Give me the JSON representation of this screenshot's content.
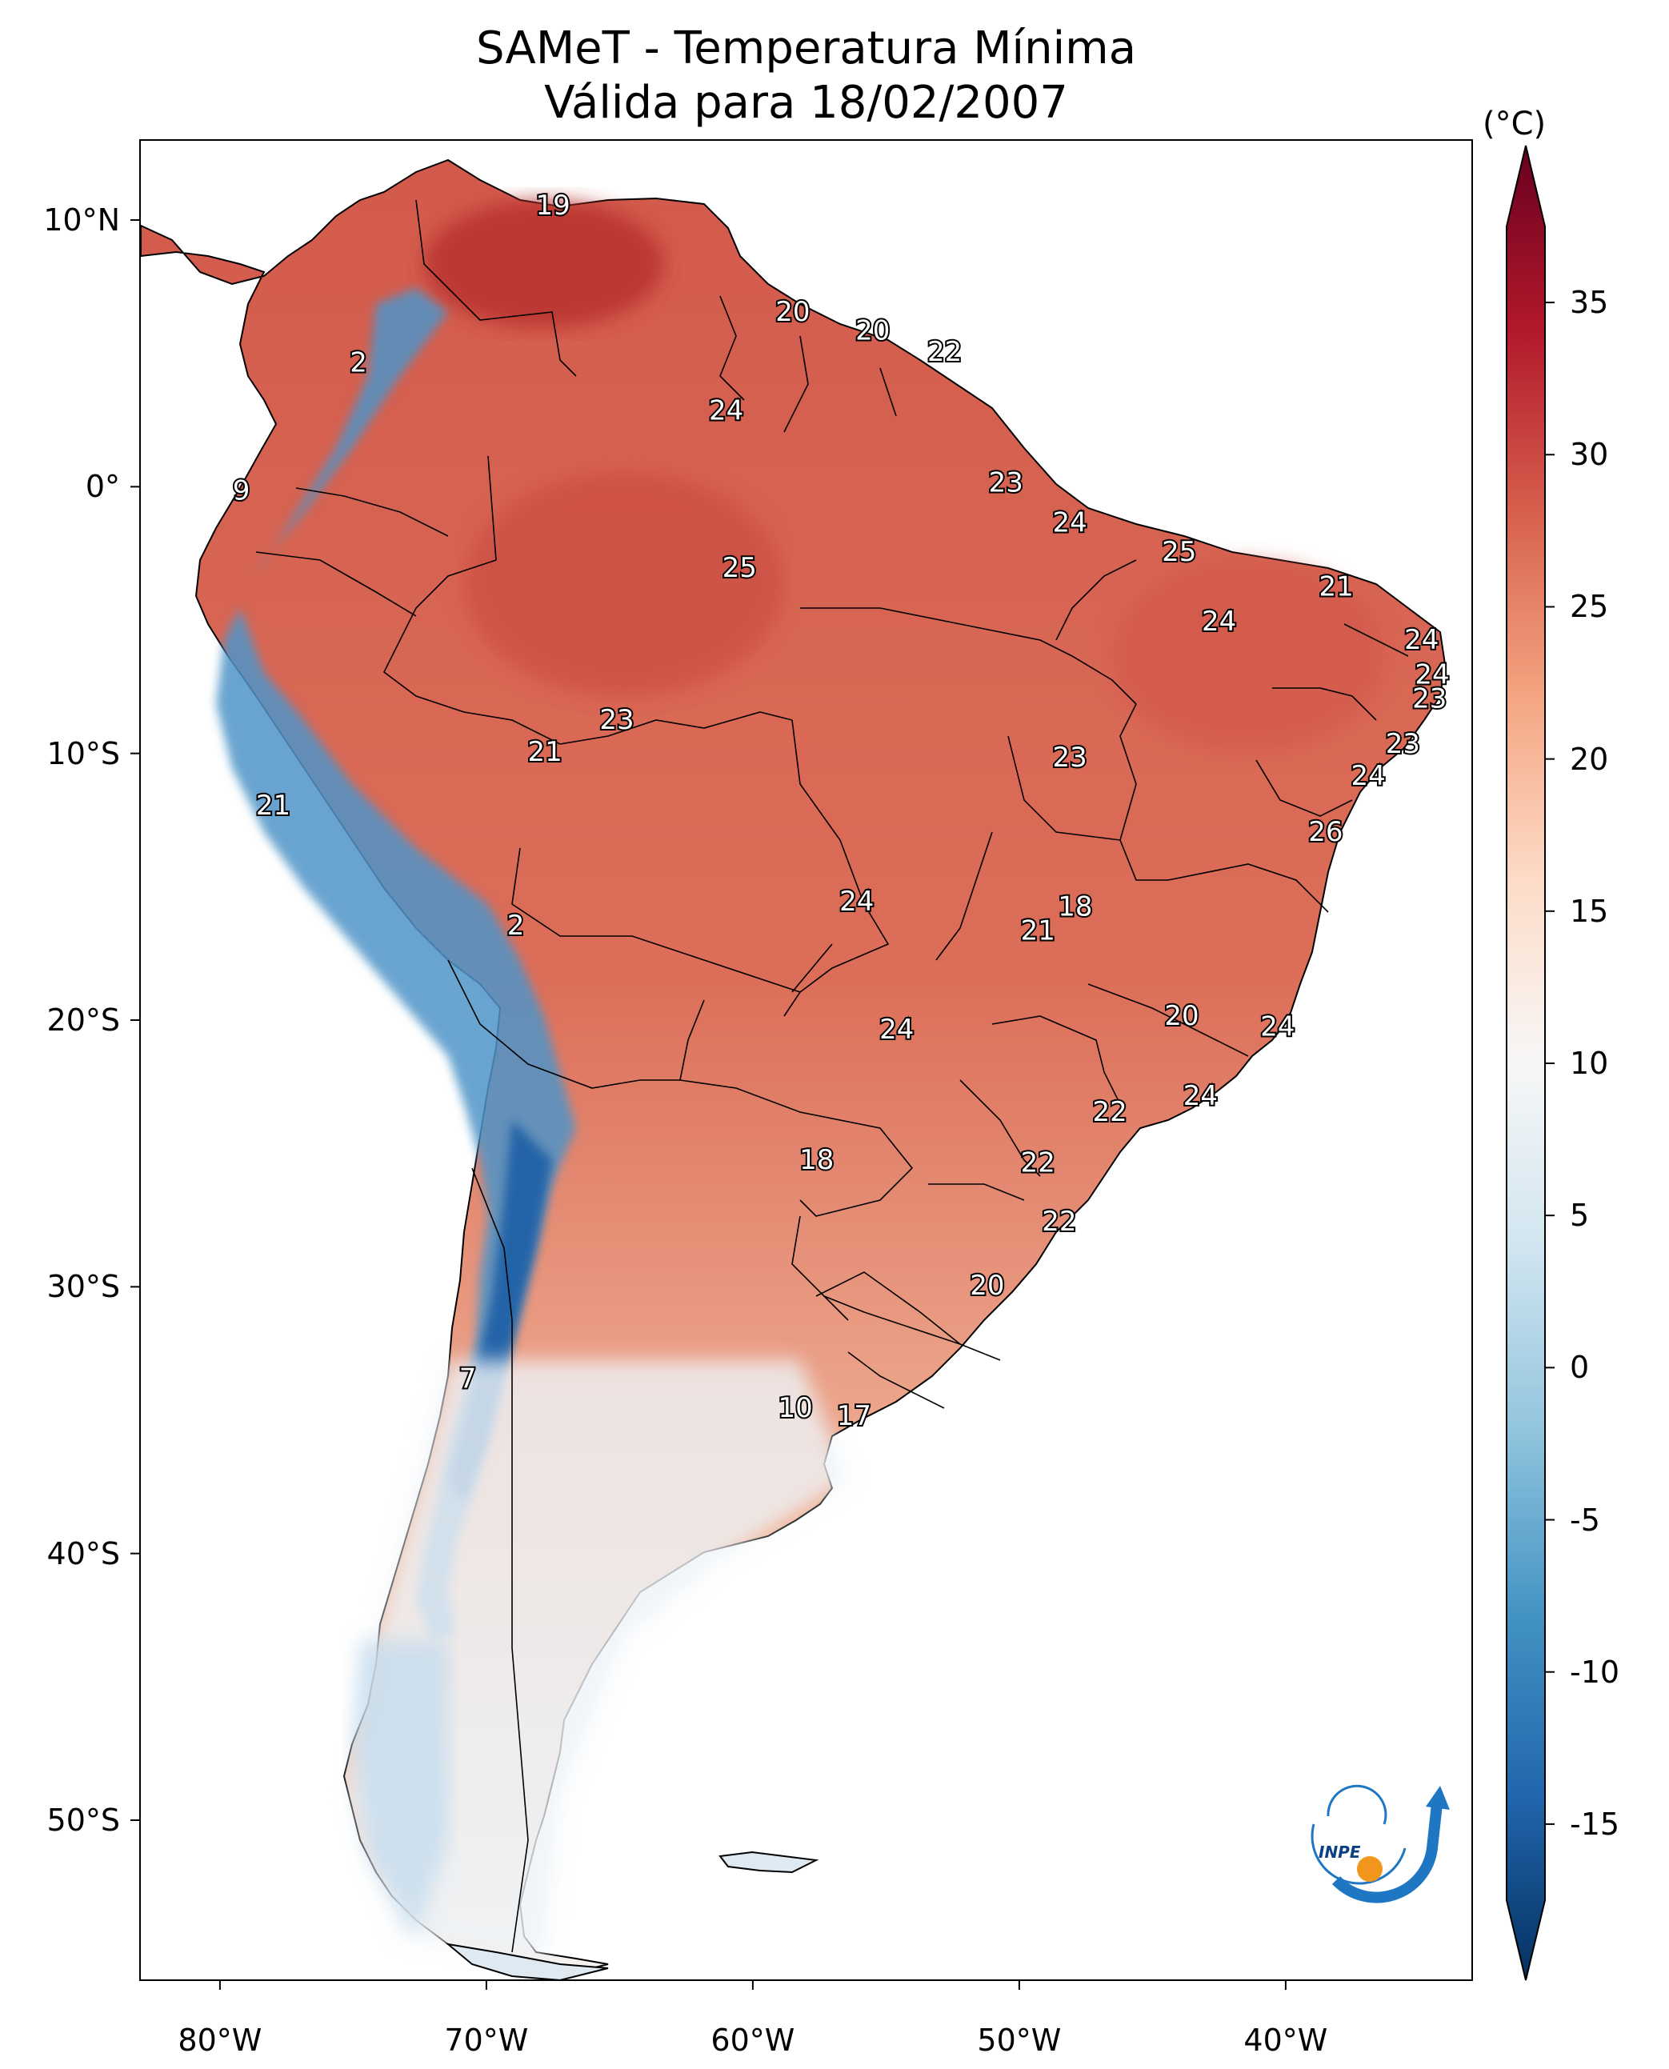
{
  "title_line1": "SAMeT - Temperatura Mínima",
  "title_line2": "Válida para 18/02/2007",
  "colorbar": {
    "unit": "(°C)",
    "ticks": [
      "35",
      "30",
      "25",
      "20",
      "15",
      "10",
      "5",
      "0",
      "-5",
      "-10",
      "-15"
    ],
    "min": -17.5,
    "max": 37.5,
    "colormap": "RdBu_r",
    "colors": [
      "#053061",
      "#2166ac",
      "#4393c3",
      "#92c5de",
      "#d1e5f0",
      "#f7f7f7",
      "#fddbc7",
      "#f4a582",
      "#d6604d",
      "#b2182b",
      "#67001f"
    ]
  },
  "axes": {
    "lat_labels": [
      "10°N",
      "0°",
      "10°S",
      "20°S",
      "30°S",
      "40°S",
      "50°S"
    ],
    "lon_labels": [
      "80°W",
      "70°W",
      "60°W",
      "50°W",
      "40°W"
    ],
    "lon_range": [
      -83,
      -33
    ],
    "lat_range": [
      -56,
      13
    ]
  },
  "logo": {
    "icon": "inpe-logo",
    "text": "INPE"
  },
  "station_labels": [
    {
      "value": "19",
      "lon": -67.5,
      "lat": 10.5
    },
    {
      "value": "20",
      "lon": -58.5,
      "lat": 6.5
    },
    {
      "value": "20",
      "lon": -55.5,
      "lat": 5.8
    },
    {
      "value": "22",
      "lon": -52.8,
      "lat": 5.0
    },
    {
      "value": "2",
      "lon": -74.8,
      "lat": 4.6
    },
    {
      "value": "24",
      "lon": -61.0,
      "lat": 2.8
    },
    {
      "value": "9",
      "lon": -79.2,
      "lat": -0.2
    },
    {
      "value": "23",
      "lon": -50.5,
      "lat": 0.1
    },
    {
      "value": "24",
      "lon": -48.1,
      "lat": -1.4
    },
    {
      "value": "25",
      "lon": -60.5,
      "lat": -3.1
    },
    {
      "value": "25",
      "lon": -44.0,
      "lat": -2.5
    },
    {
      "value": "21",
      "lon": -38.1,
      "lat": -3.8
    },
    {
      "value": "24",
      "lon": -42.5,
      "lat": -5.1
    },
    {
      "value": "24",
      "lon": -34.9,
      "lat": -5.8
    },
    {
      "value": "24",
      "lon": -34.5,
      "lat": -7.1
    },
    {
      "value": "23",
      "lon": -34.6,
      "lat": -8.0
    },
    {
      "value": "23",
      "lon": -65.1,
      "lat": -8.8
    },
    {
      "value": "21",
      "lon": -67.8,
      "lat": -10.0
    },
    {
      "value": "23",
      "lon": -48.1,
      "lat": -10.2
    },
    {
      "value": "23",
      "lon": -35.6,
      "lat": -9.7
    },
    {
      "value": "24",
      "lon": -36.9,
      "lat": -10.9
    },
    {
      "value": "21",
      "lon": -78.0,
      "lat": -12.0
    },
    {
      "value": "26",
      "lon": -38.5,
      "lat": -13.0
    },
    {
      "value": "24",
      "lon": -56.1,
      "lat": -15.6
    },
    {
      "value": "18",
      "lon": -47.9,
      "lat": -15.8
    },
    {
      "value": "21",
      "lon": -49.3,
      "lat": -16.7
    },
    {
      "value": "2",
      "lon": -68.9,
      "lat": -16.5
    },
    {
      "value": "20",
      "lon": -43.9,
      "lat": -19.9
    },
    {
      "value": "24",
      "lon": -40.3,
      "lat": -20.3
    },
    {
      "value": "24",
      "lon": -54.6,
      "lat": -20.4
    },
    {
      "value": "24",
      "lon": -43.2,
      "lat": -22.9
    },
    {
      "value": "22",
      "lon": -46.6,
      "lat": -23.5
    },
    {
      "value": "18",
      "lon": -57.6,
      "lat": -25.3
    },
    {
      "value": "22",
      "lon": -49.3,
      "lat": -25.4
    },
    {
      "value": "22",
      "lon": -48.5,
      "lat": -27.6
    },
    {
      "value": "20",
      "lon": -51.2,
      "lat": -30.0
    },
    {
      "value": "7",
      "lon": -70.7,
      "lat": -33.5
    },
    {
      "value": "10",
      "lon": -58.4,
      "lat": -34.6
    },
    {
      "value": "17",
      "lon": -56.2,
      "lat": -34.9
    }
  ]
}
